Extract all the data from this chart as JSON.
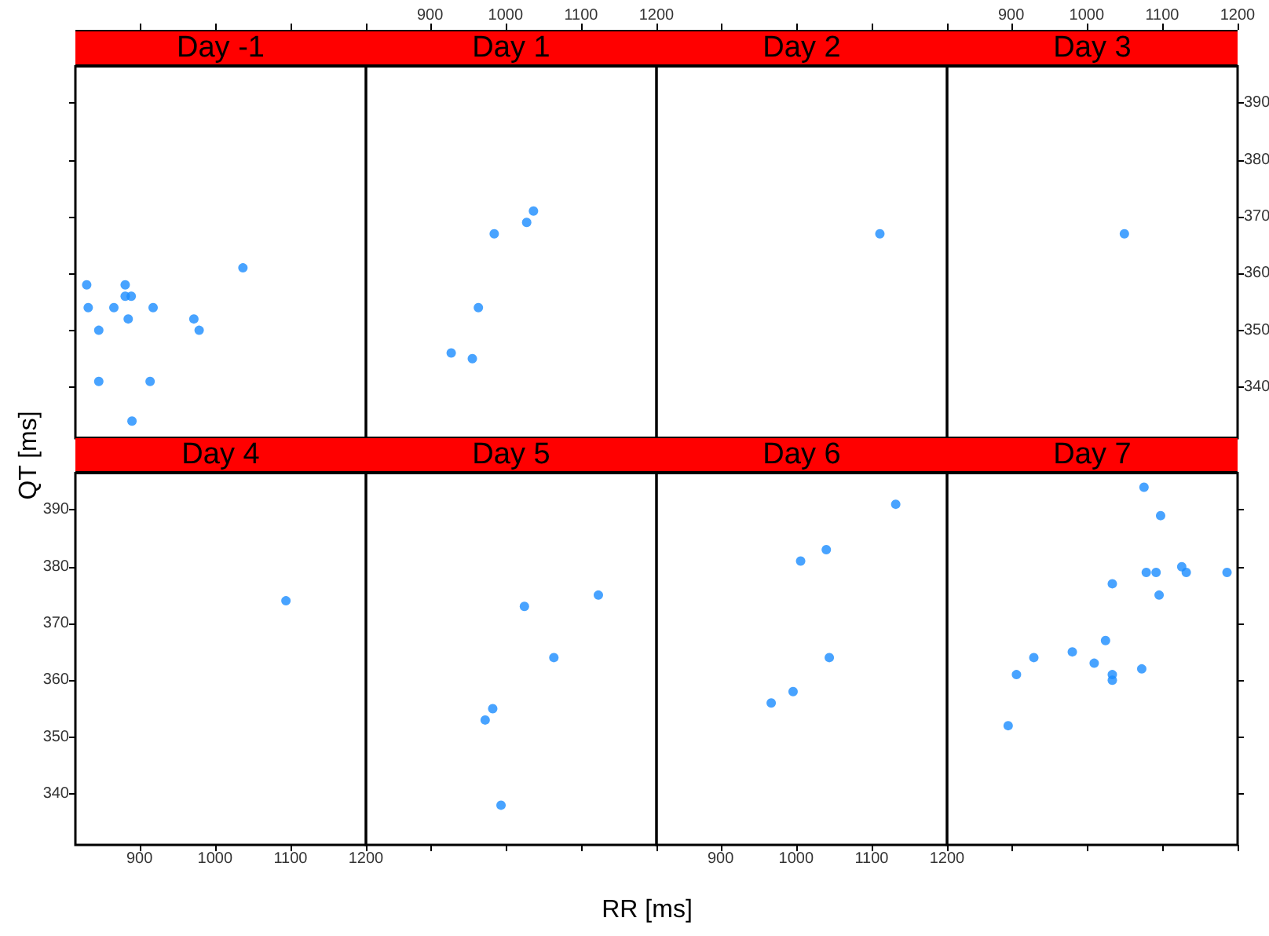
{
  "chart_data": [
    {
      "type": "scatter",
      "title": "Day -1",
      "ylabel": "QT [ms]",
      "marker": "circle",
      "tick_labels": false,
      "xlim": [
        815,
        1200
      ],
      "xticks": [
        900,
        1000,
        1100,
        1200
      ],
      "ylim": [
        331,
        396.5
      ],
      "yticks": [
        340,
        350,
        360,
        370,
        380,
        390
      ],
      "series": [
        {
          "color": "#1a8cff",
          "x": [
            830,
            832,
            846,
            846,
            866,
            881,
            881,
            889,
            885,
            890,
            918,
            914,
            972,
            979,
            1037
          ],
          "values": [
            358,
            354,
            350,
            341,
            354,
            358,
            356,
            356,
            352,
            334,
            354,
            341,
            352,
            350,
            361
          ]
        }
      ]
    },
    {
      "type": "scatter",
      "title": "Day 1",
      "marker": "circle",
      "tick_labels": "x",
      "xlim": [
        815,
        1200
      ],
      "xticks": [
        900,
        1000,
        1100,
        1200
      ],
      "ylim": [
        331,
        396.5
      ],
      "series": [
        {
          "color": "#1a8cff",
          "x": [
            928,
            956,
            964,
            985,
            1028,
            1037
          ],
          "values": [
            346,
            345,
            354,
            367,
            369,
            371
          ]
        }
      ]
    },
    {
      "type": "scatter",
      "title": "Day 2",
      "marker": "circle",
      "tick_labels": false,
      "xlim": [
        815,
        1200
      ],
      "xticks": [
        900,
        1000,
        1100,
        1200
      ],
      "ylim": [
        331,
        396.5
      ],
      "series": [
        {
          "color": "#1a8cff",
          "x": [
            1111
          ],
          "values": [
            367
          ]
        }
      ]
    },
    {
      "type": "scatter",
      "title": "Day 3",
      "marker": "circle",
      "xlim": [
        815,
        1200
      ],
      "xticks": [
        900,
        1000,
        1100,
        1200
      ],
      "ylim": [
        331,
        396.5
      ],
      "yticks": [
        340,
        350,
        360,
        370,
        380,
        390
      ],
      "series": [
        {
          "color": "#1a8cff",
          "x": [
            1050
          ],
          "values": [
            367
          ]
        }
      ]
    },
    {
      "type": "scatter",
      "title": "Day 4",
      "marker": "circle",
      "xlim": [
        815,
        1200
      ],
      "xticks": [
        900,
        1000,
        1100,
        1200
      ],
      "ylim": [
        331,
        396.5
      ],
      "yticks": [
        340,
        350,
        360,
        370,
        380,
        390
      ],
      "series": [
        {
          "color": "#1a8cff",
          "x": [
            1094
          ],
          "values": [
            374
          ]
        }
      ]
    },
    {
      "type": "scatter",
      "title": "Day 5",
      "xlabel": "RR [ms]",
      "marker": "circle",
      "tick_labels": false,
      "xlim": [
        815,
        1200
      ],
      "xticks": [
        900,
        1000,
        1100,
        1200
      ],
      "ylim": [
        331,
        396.5
      ],
      "series": [
        {
          "color": "#1a8cff",
          "x": [
            973,
            983,
            994,
            1025,
            1064,
            1123
          ],
          "values": [
            353,
            355,
            338,
            373,
            364,
            375
          ]
        }
      ]
    },
    {
      "type": "scatter",
      "title": "Day 6",
      "marker": "circle",
      "tick_labels": "x",
      "xlim": [
        815,
        1200
      ],
      "xticks": [
        900,
        1000,
        1100,
        1200
      ],
      "ylim": [
        331,
        396.5
      ],
      "series": [
        {
          "color": "#1a8cff",
          "x": [
            967,
            996,
            1006,
            1040,
            1044,
            1132
          ],
          "values": [
            356,
            358,
            381,
            383,
            364,
            391
          ]
        }
      ]
    },
    {
      "type": "scatter",
      "title": "Day 7",
      "marker": "circle",
      "tick_labels": false,
      "xlim": [
        815,
        1200
      ],
      "xticks": [
        900,
        1000,
        1100,
        1200
      ],
      "ylim": [
        331,
        396.5
      ],
      "yticks": [
        340,
        350,
        360,
        370,
        380,
        390
      ],
      "series": [
        {
          "color": "#1a8cff",
          "x": [
            896,
            907,
            930,
            981,
            1010,
            1025,
            1034,
            1034,
            1034,
            1073,
            1076,
            1079,
            1092,
            1096,
            1098,
            1126,
            1132,
            1186
          ],
          "values": [
            352,
            361,
            364,
            365,
            363,
            367,
            377,
            361,
            360,
            362,
            394,
            379,
            379,
            375,
            389,
            380,
            379,
            379
          ]
        }
      ]
    }
  ]
}
